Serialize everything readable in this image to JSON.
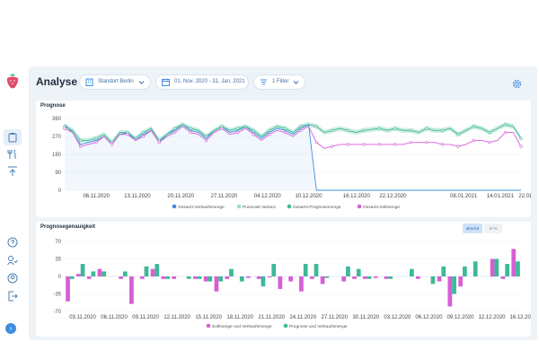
{
  "header": {
    "title": "Analyse",
    "location_filter": "Standort Berlin",
    "date_range": "01. Nov. 2020 - 31. Jan. 2021",
    "filter_label": "1 Filter"
  },
  "colors": {
    "actual": "#3f8de0",
    "variance": "#9fdcc6",
    "forecast": "#3fb89a",
    "target": "#d65fd6",
    "accent": "#3f8de0"
  },
  "forecast_card": {
    "title": "Prognose",
    "legend": [
      "Gesamt-Verkaufsmenge",
      "Punscast Varianz",
      "Gesamt-Prognosemenge",
      "Gesamt-Sollmenge"
    ]
  },
  "accuracy_card": {
    "title": "Prognosegenauigkeit",
    "toggle_absolute": "absolut",
    "toggle_percent": "in %",
    "legend": [
      "Sollmenge und Verkaufsmenge",
      "Prognose und Verkaufsmenge"
    ]
  },
  "chart_data": [
    {
      "type": "line",
      "title": "Prognose",
      "ylim": [
        0,
        360
      ],
      "y_ticks": [
        0,
        90,
        180,
        270,
        360
      ],
      "x_tick_labels": [
        "06.11.2020",
        "13.11.2020",
        "20.11.2020",
        "27.11.2020",
        "04.12.2020",
        "10.12.2020",
        "16.12.2020",
        "22.12.2020",
        "08.01.2021",
        "14.01.2021",
        "22.01.2021"
      ],
      "grid": true,
      "legend_position": "bottom",
      "series": [
        {
          "name": "Gesamt-Verkaufsmenge",
          "values": [
            330,
            290,
            230,
            240,
            250,
            270,
            230,
            280,
            290,
            250,
            280,
            300,
            240,
            280,
            300,
            330,
            300,
            290,
            260,
            300,
            320,
            290,
            300,
            320,
            290,
            260,
            290,
            310,
            300,
            280,
            310,
            330,
            0,
            0,
            0,
            0,
            0,
            0,
            0,
            0,
            0,
            0,
            0,
            0,
            0,
            0,
            0,
            0,
            0,
            0,
            0,
            0,
            0,
            0,
            0,
            0,
            0,
            0,
            0
          ]
        },
        {
          "name": "Gesamt-Prognosemenge",
          "values": [
            320,
            300,
            250,
            250,
            260,
            280,
            240,
            290,
            290,
            260,
            290,
            310,
            250,
            280,
            310,
            330,
            310,
            300,
            270,
            300,
            320,
            300,
            310,
            320,
            300,
            270,
            300,
            320,
            310,
            290,
            320,
            330,
            320,
            290,
            300,
            310,
            300,
            290,
            300,
            305,
            310,
            300,
            310,
            300,
            300,
            290,
            310,
            300,
            300,
            310,
            280,
            300,
            320,
            310,
            290,
            310,
            330,
            320,
            260
          ]
        },
        {
          "name": "Gesamt-Sollmenge",
          "values": [
            310,
            290,
            220,
            230,
            240,
            270,
            230,
            280,
            280,
            250,
            270,
            300,
            240,
            270,
            290,
            320,
            290,
            280,
            250,
            290,
            310,
            280,
            290,
            310,
            280,
            250,
            280,
            300,
            290,
            270,
            300,
            320,
            240,
            210,
            220,
            230,
            230,
            230,
            230,
            230,
            230,
            230,
            230,
            230,
            240,
            240,
            240,
            240,
            230,
            230,
            220,
            230,
            250,
            250,
            240,
            250,
            290,
            290,
            220
          ]
        }
      ]
    },
    {
      "type": "bar",
      "title": "Prognosegenauigkeit",
      "ylim": [
        -70,
        70
      ],
      "y_ticks": [
        70,
        35,
        0,
        -35,
        -70
      ],
      "x_tick_labels": [
        "03.11.2020",
        "06.11.2020",
        "09.11.2020",
        "12.11.2020",
        "15.11.2020",
        "18.11.2020",
        "21.11.2020",
        "24.11.2020",
        "27.11.2020",
        "30.11.2020",
        "03.12.2020",
        "06.12.2020",
        "09.12.2020",
        "12.12.2020",
        "16.12.2020"
      ],
      "legend_position": "bottom",
      "series": [
        {
          "name": "Sollmenge und Verkaufsmenge",
          "values": [
            -50,
            5,
            -5,
            15,
            0,
            -5,
            -55,
            -5,
            15,
            -5,
            -5,
            0,
            -5,
            -10,
            -30,
            -5,
            0,
            -3,
            -5,
            -2,
            -25,
            -10,
            -30,
            -5,
            -15,
            0,
            -10,
            -5,
            -5,
            -3,
            -5,
            0,
            0,
            -5,
            0,
            -10,
            -60,
            -20,
            0,
            0,
            35,
            -5,
            55
          ]
        },
        {
          "name": "Prognose und Verkaufsmenge",
          "values": [
            -5,
            25,
            10,
            10,
            0,
            10,
            0,
            20,
            25,
            -5,
            0,
            -5,
            -5,
            -10,
            -10,
            15,
            -10,
            0,
            -20,
            25,
            0,
            0,
            25,
            25,
            -3,
            0,
            20,
            15,
            -5,
            0,
            -5,
            0,
            15,
            0,
            -15,
            20,
            -35,
            20,
            30,
            0,
            35,
            25,
            30
          ]
        }
      ]
    }
  ]
}
